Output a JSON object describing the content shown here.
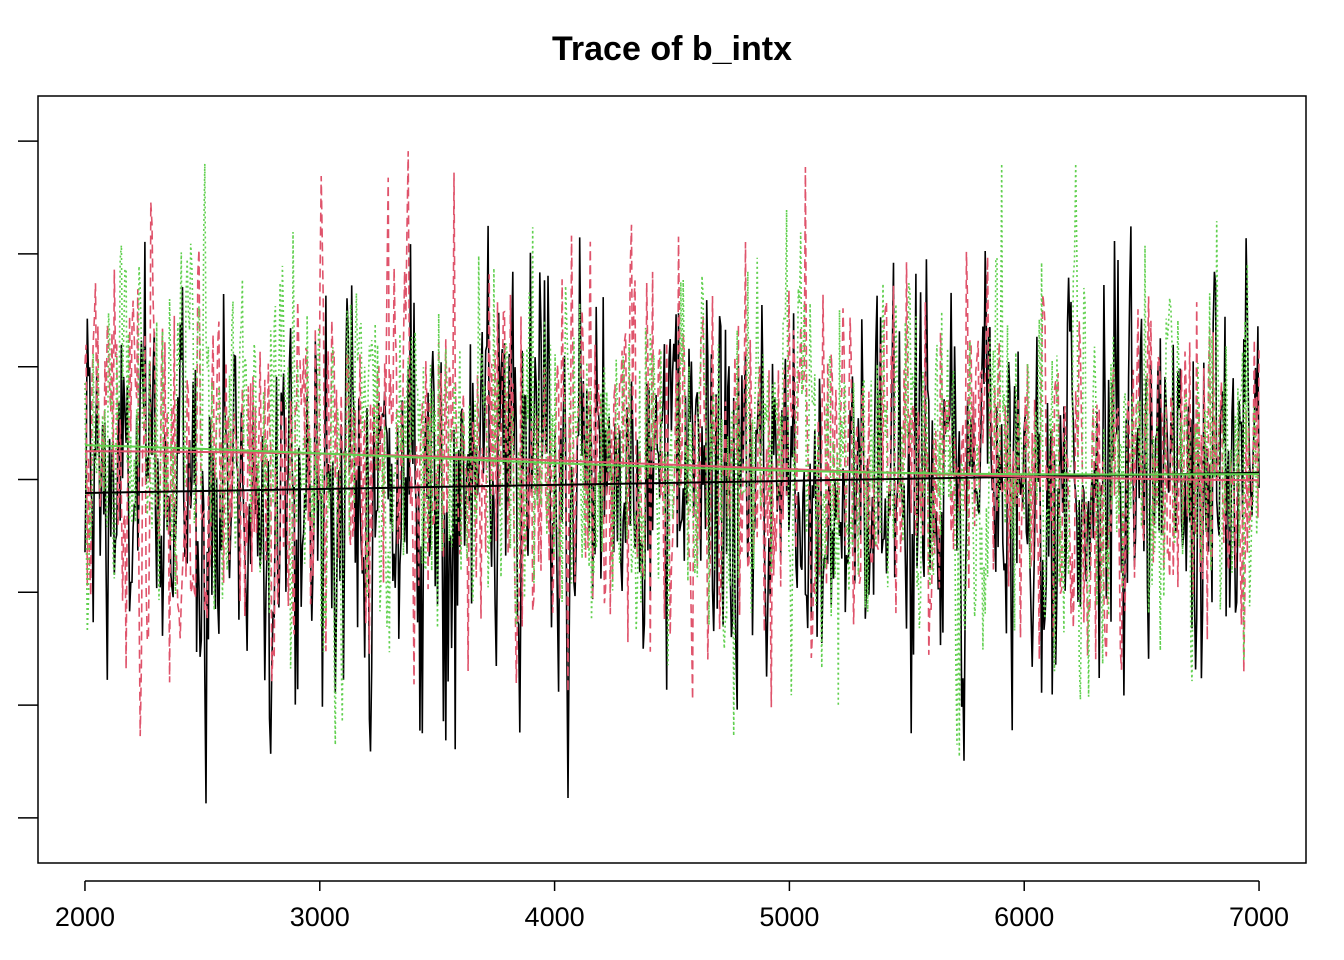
{
  "chart_data": {
    "type": "line",
    "title": "Trace of b_intx",
    "xlabel": "",
    "ylabel": "",
    "xlim": [
      1800,
      7200
    ],
    "ylim": [
      -3.4,
      3.4
    ],
    "x_ticks": [
      2000,
      3000,
      4000,
      5000,
      6000,
      7000
    ],
    "y_ticks_unlabeled": [
      -3,
      -2,
      -1,
      0,
      1,
      2,
      3
    ],
    "grid": false,
    "legend": "none",
    "iterations": {
      "start": 2000,
      "end": 7000,
      "samples_per_chain": 1000
    },
    "series": [
      {
        "color": "#000000",
        "line_style": "solid",
        "mean": -0.05,
        "sd": 0.85,
        "min": -3.05,
        "max": 3.1,
        "smooth_start": -0.12,
        "smooth_end": 0.06
      },
      {
        "color": "#DF536B",
        "line_style": "dashed",
        "mean": -0.05,
        "sd": 0.85,
        "min": -3.1,
        "max": 3.3,
        "smooth_start": 0.2,
        "smooth_end": 0.05
      },
      {
        "color": "#61D04F",
        "line_style": "dotted",
        "mean": 0.0,
        "sd": 0.85,
        "min": -3.0,
        "max": 2.8,
        "smooth_start": 0.25,
        "smooth_end": 0.06
      }
    ]
  }
}
